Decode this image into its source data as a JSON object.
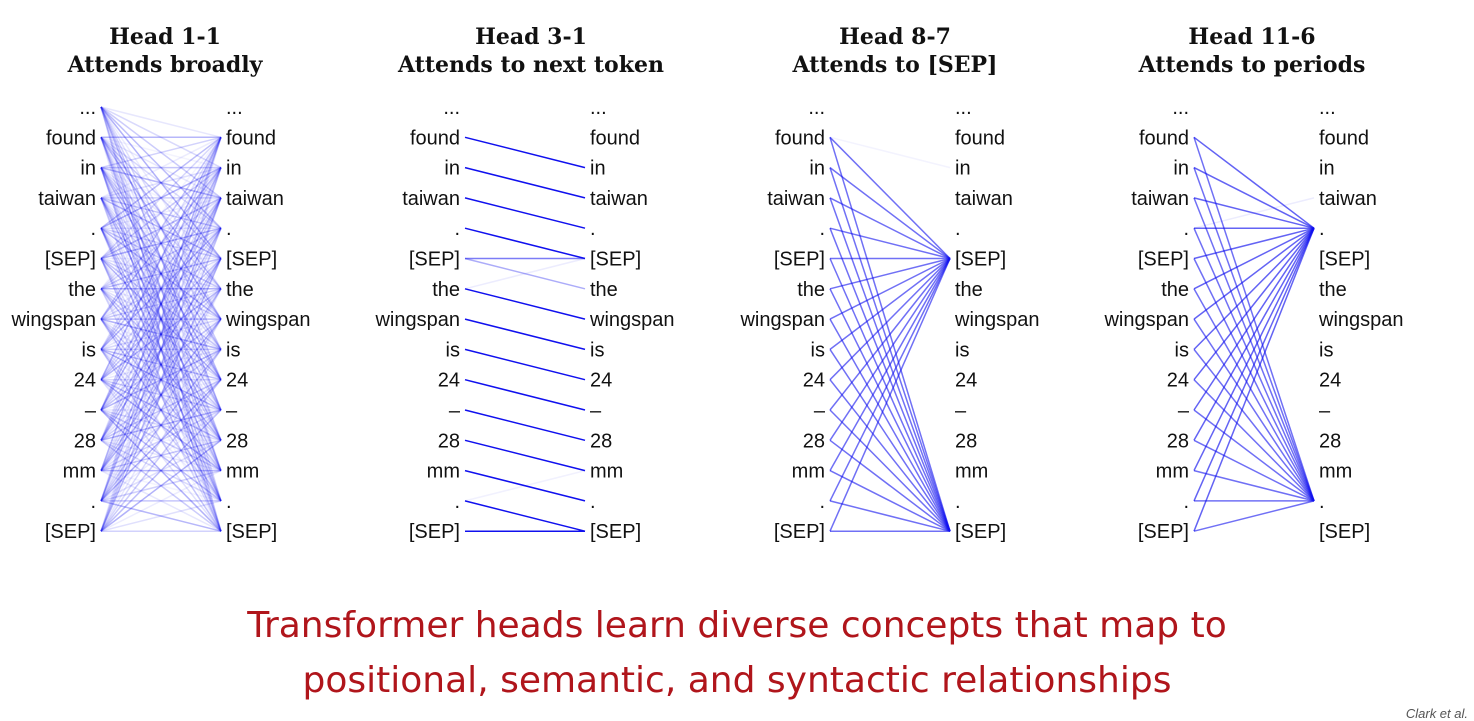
{
  "tokens": [
    "...",
    "found",
    "in",
    "taiwan",
    ".",
    "[SEP]",
    "the",
    "wingspan",
    "is",
    "24",
    "–",
    "28",
    "mm",
    ".",
    "[SEP]"
  ],
  "line_color": "#1010ee",
  "heads": [
    {
      "title": "Head 1-1",
      "subtitle": "Attends broadly",
      "pattern": "broad"
    },
    {
      "title": "Head 3-1",
      "subtitle": "Attends to next token",
      "pattern": "next"
    },
    {
      "title": "Head 8-7",
      "subtitle": "Attends to [SEP]",
      "pattern": "sep"
    },
    {
      "title": "Head 11-6",
      "subtitle": "Attends to periods",
      "pattern": "period"
    }
  ],
  "caption": {
    "line1": "Transformer heads learn diverse concepts that map to",
    "line2": "positional, semantic, and syntactic relationships"
  },
  "citation": "Clark et al."
}
